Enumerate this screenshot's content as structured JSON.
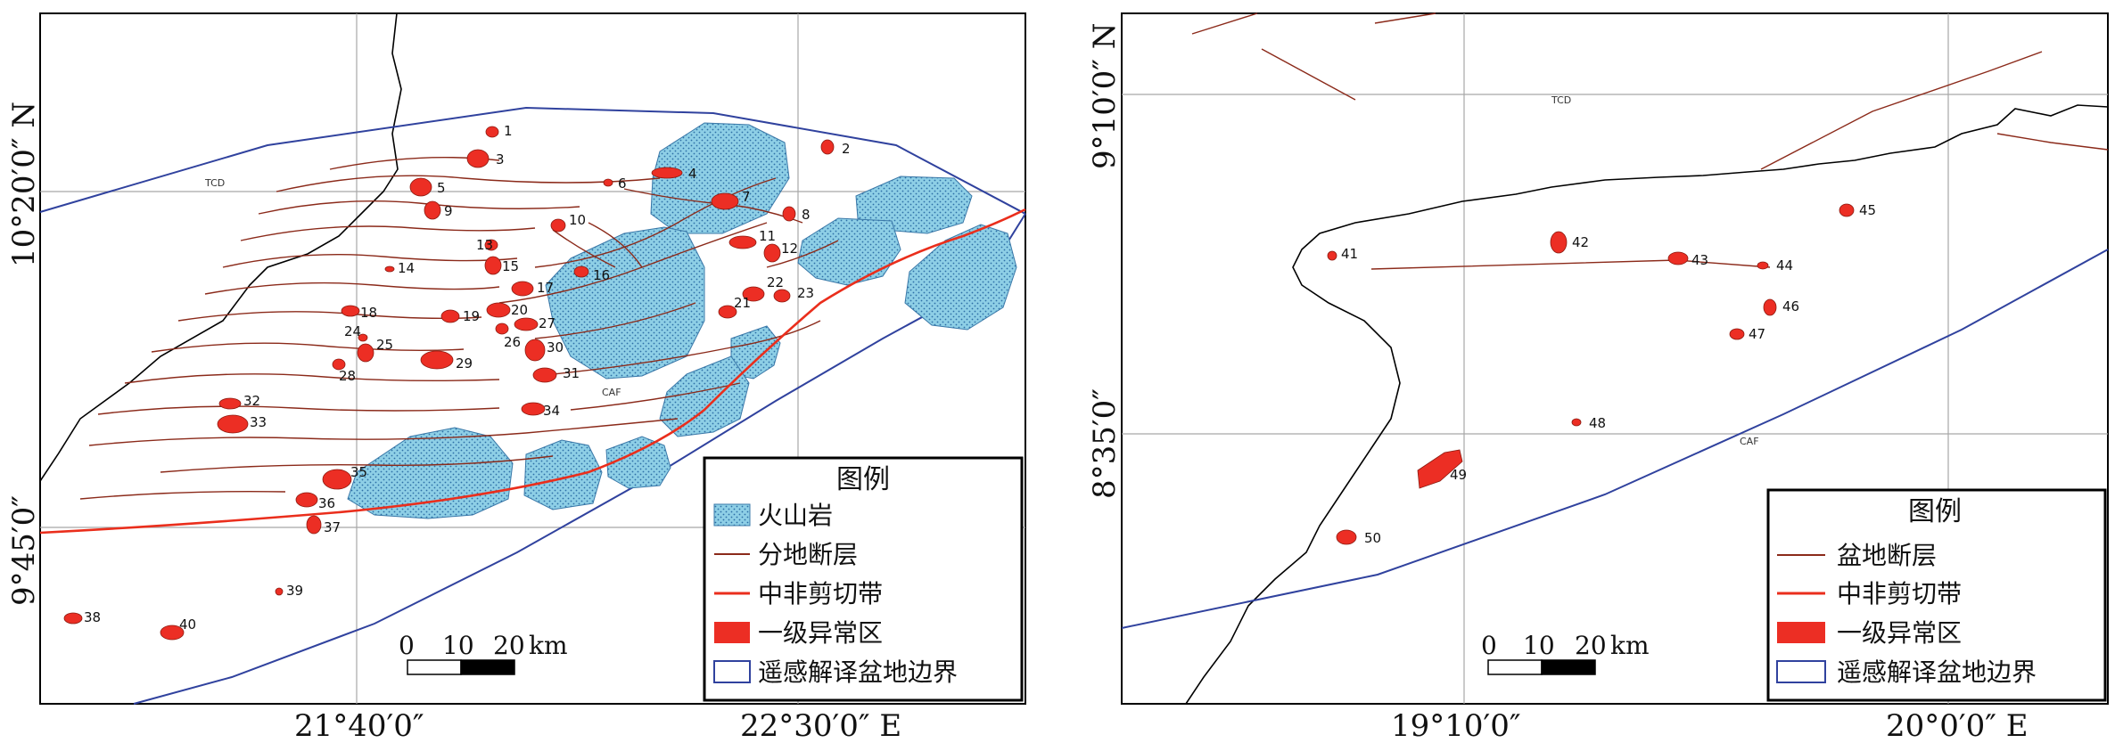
{
  "colors": {
    "volcanic_fill": "#8ecfe6",
    "volcanic_edge": "#3a78a8",
    "fault": "#8b2a1a",
    "shear": "#ea2e1c",
    "anomaly": "#ec2e24",
    "basin_boundary": "#30429e",
    "grid": "#a8a8a8",
    "frame": "#000000"
  },
  "left_map": {
    "coords": {
      "lat_top": "10°20′0″  N",
      "lat_mid": "9°45′0″",
      "lat_left_top": "10°20′0″  N",
      "lon_1": "21°40′0″",
      "lon_2": "22°30′0″  E"
    },
    "tcd": "TCD",
    "caf": "CAF",
    "anomaly_labels": [
      "1",
      "2",
      "3",
      "4",
      "5",
      "6",
      "7",
      "8",
      "9",
      "10",
      "11",
      "12",
      "13",
      "14",
      "15",
      "16",
      "17",
      "18",
      "19",
      "20",
      "21",
      "22",
      "23",
      "24",
      "25",
      "26",
      "27",
      "28",
      "29",
      "30",
      "31",
      "32",
      "33",
      "34",
      "35",
      "36",
      "37",
      "38",
      "39",
      "40"
    ],
    "scale": {
      "n0": "0",
      "n1": "10",
      "n2": "20",
      "unit": "km"
    },
    "legend": {
      "title": "图例",
      "items": [
        "火山岩",
        "分地断层",
        "中非剪切带",
        "一级异常区",
        "遥感解译盆地边界"
      ]
    }
  },
  "right_map": {
    "coords": {
      "lat_top": "9°10′0″  N",
      "lat_mid": "8°35′0″",
      "lon_1": "19°10′0″",
      "lon_2": "20°0′0″  E"
    },
    "tcd": "TCD",
    "caf": "CAF",
    "anomaly_labels": [
      "41",
      "42",
      "43",
      "44",
      "45",
      "46",
      "47",
      "48",
      "49",
      "50"
    ],
    "scale": {
      "n0": "0",
      "n1": "10",
      "n2": "20",
      "unit": "km"
    },
    "legend": {
      "title": "图例",
      "items": [
        "盆地断层",
        "中非剪切带",
        "一级异常区",
        "遥感解译盆地边界"
      ]
    }
  }
}
